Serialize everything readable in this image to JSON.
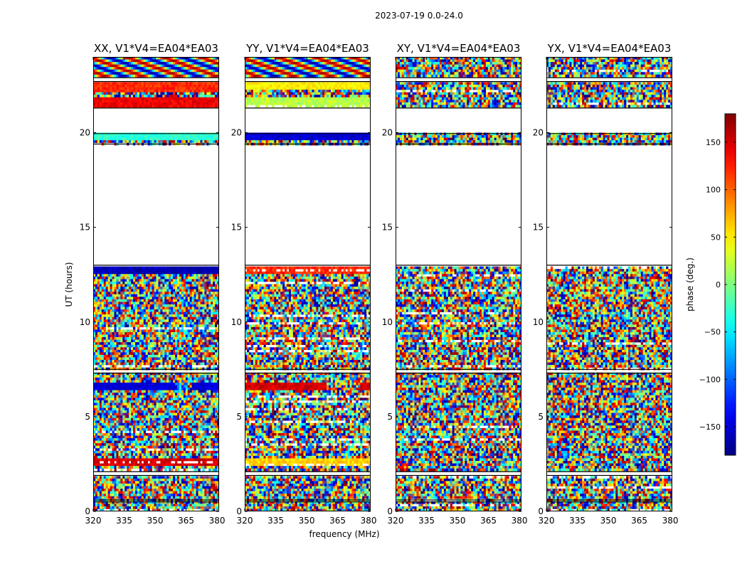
{
  "chart_data": {
    "type": "heatmap",
    "suptitle": "2023-07-19 0.0-24.0",
    "xlabel": "frequency (MHz)",
    "ylabel": "UT (hours)",
    "xlim": [
      320,
      381
    ],
    "ylim": [
      0,
      24
    ],
    "xticks": [
      320,
      335,
      350,
      365,
      380
    ],
    "yticks": [
      0,
      5,
      10,
      15,
      20
    ],
    "panels": [
      {
        "title": "XX, V1*V4=EA04*EA03",
        "polarization": "XX",
        "coherent_bands": [
          {
            "t0": 6.4,
            "t1": 6.8,
            "phase": -150,
            "gap_freq": [
              360,
              368
            ]
          },
          {
            "t0": 2.4,
            "t1": 2.8,
            "phase": 150
          },
          {
            "t0": 12.6,
            "t1": 12.9,
            "phase": -160
          },
          {
            "t0": 22.2,
            "t1": 22.6,
            "phase": 120
          },
          {
            "t0": 21.4,
            "t1": 21.8,
            "phase": 140
          },
          {
            "t0": 19.6,
            "t1": 19.95,
            "phase": -30
          }
        ]
      },
      {
        "title": "YY, V1*V4=EA04*EA03",
        "polarization": "YY",
        "coherent_bands": [
          {
            "t0": 6.4,
            "t1": 6.8,
            "phase": 150,
            "gap_freq": [
              360,
              376
            ]
          },
          {
            "t0": 2.4,
            "t1": 2.8,
            "phase": 60
          },
          {
            "t0": 12.6,
            "t1": 12.9,
            "phase": 120
          },
          {
            "t0": 22.3,
            "t1": 22.6,
            "phase": 50
          },
          {
            "t0": 21.4,
            "t1": 21.8,
            "phase": 20
          },
          {
            "t0": 19.6,
            "t1": 19.95,
            "phase": -150
          }
        ]
      },
      {
        "title": "XY, V1*V4=EA04*EA03",
        "polarization": "XY",
        "coherent_bands": []
      },
      {
        "title": "YX, V1*V4=EA04*EA03",
        "polarization": "YX",
        "coherent_bands": []
      }
    ],
    "flagged_time_ranges": [
      [
        13.0,
        19.4
      ],
      [
        19.95,
        21.3
      ],
      [
        22.7,
        22.9
      ],
      [
        7.3,
        7.5
      ],
      [
        1.9,
        2.1
      ],
      [
        0.5,
        0.6
      ]
    ],
    "colorbar": {
      "label": "phase (deg.)",
      "vmin": -180,
      "vmax": 180,
      "ticks": [
        -150,
        -100,
        -50,
        0,
        50,
        100,
        150
      ],
      "colormap": "jet"
    }
  }
}
